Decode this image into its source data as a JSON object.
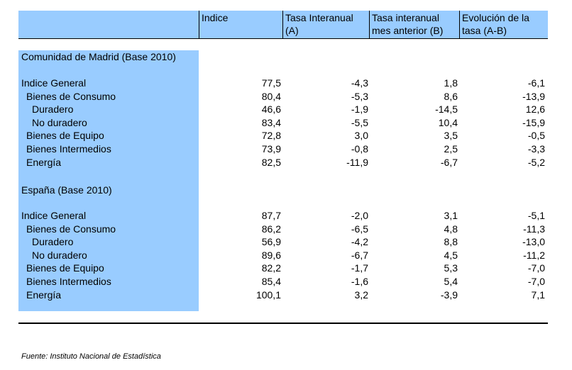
{
  "header": {
    "col1": [
      "Indice"
    ],
    "col2": [
      "Tasa Interanual",
      "(A)"
    ],
    "col3": [
      "Tasa interanual",
      "mes anterior (B)"
    ],
    "col4": [
      "Evolución de la",
      "tasa (A-B)"
    ]
  },
  "sections": [
    {
      "title": "Comunidad de Madrid (Base 2010)",
      "rows": [
        {
          "label": "Indice General",
          "indent": 0,
          "indice": "77,5",
          "a": "-4,3",
          "b": "1,8",
          "ab": "-6,1"
        },
        {
          "label": "Bienes de Consumo",
          "indent": 1,
          "indice": "80,4",
          "a": "-5,3",
          "b": "8,6",
          "ab": "-13,9"
        },
        {
          "label": "Duradero",
          "indent": 2,
          "indice": "46,6",
          "a": "-1,9",
          "b": "-14,5",
          "ab": "12,6"
        },
        {
          "label": "No duradero",
          "indent": 2,
          "indice": "83,4",
          "a": "-5,5",
          "b": "10,4",
          "ab": "-15,9"
        },
        {
          "label": "Bienes de Equipo",
          "indent": 1,
          "indice": "72,8",
          "a": "3,0",
          "b": "3,5",
          "ab": "-0,5"
        },
        {
          "label": "Bienes Intermedios",
          "indent": 1,
          "indice": "73,9",
          "a": "-0,8",
          "b": "2,5",
          "ab": "-3,3"
        },
        {
          "label": "Energía",
          "indent": 1,
          "indice": "82,5",
          "a": "-11,9",
          "b": "-6,7",
          "ab": "-5,2"
        }
      ]
    },
    {
      "title": "España (Base 2010)",
      "rows": [
        {
          "label": "Indice General",
          "indent": 0,
          "indice": "87,7",
          "a": "-2,0",
          "b": "3,1",
          "ab": "-5,1"
        },
        {
          "label": "Bienes de Consumo",
          "indent": 1,
          "indice": "86,2",
          "a": "-6,5",
          "b": "4,8",
          "ab": "-11,3"
        },
        {
          "label": "Duradero",
          "indent": 2,
          "indice": "56,9",
          "a": "-4,2",
          "b": "8,8",
          "ab": "-13,0"
        },
        {
          "label": "No duradero",
          "indent": 2,
          "indice": "89,6",
          "a": "-6,7",
          "b": "4,5",
          "ab": "-11,2"
        },
        {
          "label": "Bienes de Equipo",
          "indent": 1,
          "indice": "82,2",
          "a": "-1,7",
          "b": "5,3",
          "ab": "-7,0"
        },
        {
          "label": "Bienes Intermedios",
          "indent": 1,
          "indice": "85,4",
          "a": "-1,6",
          "b": "5,4",
          "ab": "-7,0"
        },
        {
          "label": "Energía",
          "indent": 1,
          "indice": "100,1",
          "a": "3,2",
          "b": "-3,9",
          "ab": "7,1"
        }
      ]
    }
  ],
  "source": "Fuente: Instituto Nacional de Estadística",
  "colors": {
    "header_bg": "#99ccff",
    "side_bg": "#99ccff"
  }
}
